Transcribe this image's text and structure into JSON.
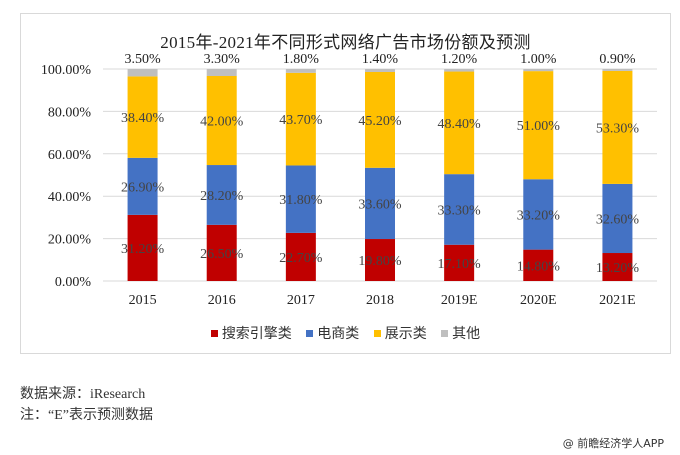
{
  "chart_data": {
    "type": "bar",
    "stacked": true,
    "title": "2015年-2021年不同形式网络广告市场份额及预测",
    "xlabel": "",
    "ylabel": "",
    "ylim": [
      0,
      100
    ],
    "yticks": [
      "0.00%",
      "20.00%",
      "40.00%",
      "60.00%",
      "80.00%",
      "100.00%"
    ],
    "grid": true,
    "legend_position": "bottom",
    "categories": [
      "2015",
      "2016",
      "2017",
      "2018",
      "2019E",
      "2020E",
      "2021E"
    ],
    "series": [
      {
        "name": "搜索引擎类",
        "color": "#C00000",
        "values": [
          31.2,
          26.5,
          22.7,
          19.8,
          17.1,
          14.8,
          13.2
        ],
        "labels": [
          "31.20%",
          "26.50%",
          "22.70%",
          "19.80%",
          "17.10%",
          "14.80%",
          "13.20%"
        ]
      },
      {
        "name": "电商类",
        "color": "#4472C4",
        "values": [
          26.9,
          28.2,
          31.8,
          33.6,
          33.3,
          33.2,
          32.6
        ],
        "labels": [
          "26.90%",
          "28.20%",
          "31.80%",
          "33.60%",
          "33.30%",
          "33.20%",
          "32.60%"
        ]
      },
      {
        "name": "展示类",
        "color": "#FFC000",
        "values": [
          38.4,
          42.0,
          43.7,
          45.2,
          48.4,
          51.0,
          53.3
        ],
        "labels": [
          "38.40%",
          "42.00%",
          "43.70%",
          "45.20%",
          "48.40%",
          "51.00%",
          "53.30%"
        ]
      },
      {
        "name": "其他",
        "color": "#BFBFBF",
        "values": [
          3.5,
          3.3,
          1.8,
          1.4,
          1.2,
          1.0,
          0.9
        ],
        "labels": [
          "3.50%",
          "3.30%",
          "1.80%",
          "1.40%",
          "1.20%",
          "1.00%",
          "0.90%"
        ]
      }
    ]
  },
  "notes": {
    "source": "数据来源：iResearch",
    "note": "注：“E”表示预测数据"
  },
  "watermark": "@ 前瞻经济学人APP"
}
